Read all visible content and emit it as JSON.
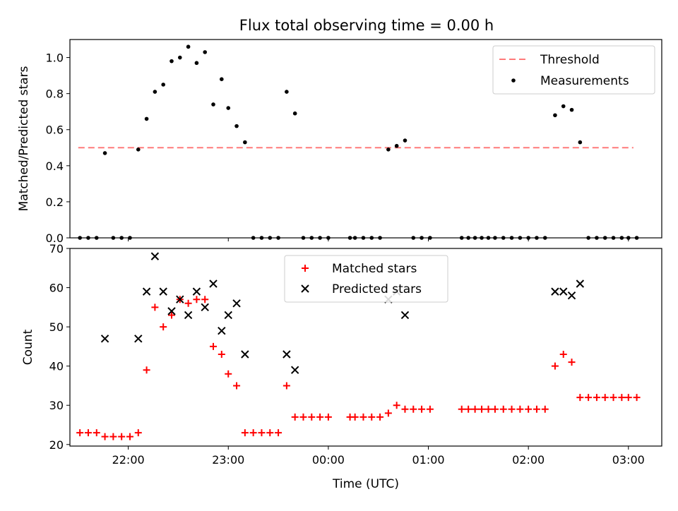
{
  "title": "Flux total observing time = 0.00 h",
  "colors": {
    "threshold": "#ff7a7a",
    "measurements": "#000000",
    "matched": "#ff0000",
    "predicted": "#000000"
  },
  "chart_data": [
    {
      "type": "scatter",
      "ylabel": "Matched/Predicted stars",
      "ylim": [
        0,
        1.1
      ],
      "yticks": [
        0.0,
        0.2,
        0.4,
        0.6,
        0.8,
        1.0
      ],
      "ytick_labels": [
        "0.0",
        "0.2",
        "0.4",
        "0.6",
        "0.8",
        "1.0"
      ],
      "threshold": {
        "label": "Threshold",
        "value": 0.5,
        "x_start": "21:30",
        "x_end": "03:03"
      },
      "legend": {
        "placement": "top-right",
        "entries": [
          "Threshold",
          "Measurements"
        ]
      },
      "series": [
        {
          "name": "Measurements",
          "marker": "dot",
          "points": [
            [
              "21:31",
              0
            ],
            [
              "21:36",
              0
            ],
            [
              "21:41",
              0
            ],
            [
              "21:46",
              0.47
            ],
            [
              "21:51",
              0
            ],
            [
              "21:56",
              0
            ],
            [
              "22:01",
              0
            ],
            [
              "22:06",
              0.49
            ],
            [
              "22:11",
              0.66
            ],
            [
              "22:16",
              0.81
            ],
            [
              "22:21",
              0.85
            ],
            [
              "22:26",
              0.98
            ],
            [
              "22:31",
              1.0
            ],
            [
              "22:36",
              1.06
            ],
            [
              "22:41",
              0.97
            ],
            [
              "22:46",
              1.03
            ],
            [
              "22:51",
              0.74
            ],
            [
              "22:56",
              0.88
            ],
            [
              "23:00",
              0.72
            ],
            [
              "23:05",
              0.62
            ],
            [
              "23:10",
              0.53
            ],
            [
              "23:15",
              0
            ],
            [
              "23:20",
              0
            ],
            [
              "23:25",
              0
            ],
            [
              "23:30",
              0
            ],
            [
              "23:35",
              0.81
            ],
            [
              "23:40",
              0.69
            ],
            [
              "23:45",
              0
            ],
            [
              "23:50",
              0
            ],
            [
              "23:55",
              0
            ],
            [
              "00:00",
              0
            ],
            [
              "00:13",
              0
            ],
            [
              "00:16",
              0
            ],
            [
              "00:21",
              0
            ],
            [
              "00:26",
              0
            ],
            [
              "00:31",
              0
            ],
            [
              "00:36",
              0.49
            ],
            [
              "00:41",
              0.51
            ],
            [
              "00:46",
              0.54
            ],
            [
              "00:51",
              0
            ],
            [
              "00:56",
              0
            ],
            [
              "01:01",
              0
            ],
            [
              "01:20",
              0
            ],
            [
              "01:24",
              0
            ],
            [
              "01:28",
              0
            ],
            [
              "01:32",
              0
            ],
            [
              "01:36",
              0
            ],
            [
              "01:40",
              0
            ],
            [
              "01:45",
              0
            ],
            [
              "01:50",
              0
            ],
            [
              "01:55",
              0
            ],
            [
              "02:00",
              0
            ],
            [
              "02:05",
              0
            ],
            [
              "02:10",
              0
            ],
            [
              "02:16",
              0.68
            ],
            [
              "02:21",
              0.73
            ],
            [
              "02:26",
              0.71
            ],
            [
              "02:31",
              0.53
            ],
            [
              "02:36",
              0
            ],
            [
              "02:41",
              0
            ],
            [
              "02:46",
              0
            ],
            [
              "02:51",
              0
            ],
            [
              "02:56",
              0
            ],
            [
              "03:00",
              0
            ],
            [
              "03:05",
              0
            ]
          ]
        }
      ]
    },
    {
      "type": "scatter",
      "xlabel": "Time (UTC)",
      "ylabel": "Count",
      "ylim": [
        19.6,
        70
      ],
      "yticks": [
        20,
        30,
        40,
        50,
        60,
        70
      ],
      "ytick_labels": [
        "20",
        "30",
        "40",
        "50",
        "60",
        "70"
      ],
      "xlim": [
        "21:25",
        "03:20"
      ],
      "xticks": [
        "22:00",
        "23:00",
        "00:00",
        "01:00",
        "02:00",
        "03:00"
      ],
      "xtick_labels": [
        "22:00",
        "23:00",
        "00:00",
        "01:00",
        "02:00",
        "03:00"
      ],
      "legend": {
        "placement": "top-center",
        "entries": [
          "Matched stars",
          "Predicted stars"
        ]
      },
      "series": [
        {
          "name": "Matched stars",
          "marker": "plus",
          "points": [
            [
              "21:31",
              23
            ],
            [
              "21:36",
              23
            ],
            [
              "21:41",
              23
            ],
            [
              "21:46",
              22
            ],
            [
              "21:51",
              22
            ],
            [
              "21:56",
              22
            ],
            [
              "22:01",
              22
            ],
            [
              "22:06",
              23
            ],
            [
              "22:11",
              39
            ],
            [
              "22:16",
              55
            ],
            [
              "22:21",
              50
            ],
            [
              "22:26",
              53
            ],
            [
              "22:31",
              57
            ],
            [
              "22:36",
              56
            ],
            [
              "22:41",
              57
            ],
            [
              "22:46",
              57
            ],
            [
              "22:51",
              45
            ],
            [
              "22:56",
              43
            ],
            [
              "23:00",
              38
            ],
            [
              "23:05",
              35
            ],
            [
              "23:10",
              23
            ],
            [
              "23:15",
              23
            ],
            [
              "23:20",
              23
            ],
            [
              "23:25",
              23
            ],
            [
              "23:30",
              23
            ],
            [
              "23:35",
              35
            ],
            [
              "23:40",
              27
            ],
            [
              "23:45",
              27
            ],
            [
              "23:50",
              27
            ],
            [
              "23:55",
              27
            ],
            [
              "00:00",
              27
            ],
            [
              "00:13",
              27
            ],
            [
              "00:16",
              27
            ],
            [
              "00:21",
              27
            ],
            [
              "00:26",
              27
            ],
            [
              "00:31",
              27
            ],
            [
              "00:36",
              28
            ],
            [
              "00:41",
              30
            ],
            [
              "00:46",
              29
            ],
            [
              "00:51",
              29
            ],
            [
              "00:56",
              29
            ],
            [
              "01:01",
              29
            ],
            [
              "01:20",
              29
            ],
            [
              "01:24",
              29
            ],
            [
              "01:28",
              29
            ],
            [
              "01:32",
              29
            ],
            [
              "01:36",
              29
            ],
            [
              "01:40",
              29
            ],
            [
              "01:45",
              29
            ],
            [
              "01:50",
              29
            ],
            [
              "01:55",
              29
            ],
            [
              "02:00",
              29
            ],
            [
              "02:05",
              29
            ],
            [
              "02:10",
              29
            ],
            [
              "02:16",
              40
            ],
            [
              "02:21",
              43
            ],
            [
              "02:26",
              41
            ],
            [
              "02:31",
              32
            ],
            [
              "02:36",
              32
            ],
            [
              "02:41",
              32
            ],
            [
              "02:46",
              32
            ],
            [
              "02:51",
              32
            ],
            [
              "02:56",
              32
            ],
            [
              "03:00",
              32
            ],
            [
              "03:05",
              32
            ]
          ]
        },
        {
          "name": "Predicted stars",
          "marker": "x",
          "points": [
            [
              "21:46",
              47
            ],
            [
              "22:06",
              47
            ],
            [
              "22:11",
              59
            ],
            [
              "22:16",
              68
            ],
            [
              "22:21",
              59
            ],
            [
              "22:26",
              54
            ],
            [
              "22:31",
              57
            ],
            [
              "22:36",
              53
            ],
            [
              "22:41",
              59
            ],
            [
              "22:46",
              55
            ],
            [
              "22:51",
              61
            ],
            [
              "22:56",
              49
            ],
            [
              "23:00",
              53
            ],
            [
              "23:05",
              56
            ],
            [
              "23:10",
              43
            ],
            [
              "23:35",
              43
            ],
            [
              "23:40",
              39
            ],
            [
              "00:36",
              57
            ],
            [
              "00:41",
              59
            ],
            [
              "00:46",
              53
            ],
            [
              "02:16",
              59
            ],
            [
              "02:21",
              59
            ],
            [
              "02:26",
              58
            ],
            [
              "02:31",
              61
            ]
          ]
        }
      ]
    }
  ]
}
